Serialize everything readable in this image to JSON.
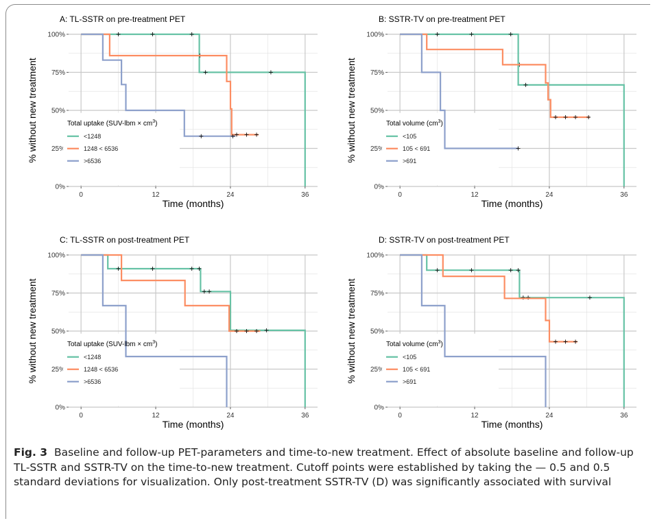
{
  "figure": {
    "caption_label": "Fig. 3",
    "caption_text": "Baseline and follow-up PET-parameters and time-to-new treatment. Effect of absolute baseline and follow-up TL-SSTR and SSTR-TV on the time-to-new treatment. Cutoff points were established by taking the — 0.5 and 0.5 standard deviations for visualization. Only post-treatment SSTR-TV (D) was significantly associated with survival"
  },
  "colors": {
    "green": "#66c2a5",
    "orange": "#fc8d62",
    "blue": "#8da0cb",
    "grid": "#c8c8c8"
  },
  "chart_data": [
    {
      "type": "line",
      "title": "A: TL-SSTR on pre-treatment PET",
      "xlabel": "Time (months)",
      "ylabel": "% without new treatment",
      "xlim": [
        -2,
        38
      ],
      "ylim": [
        0,
        100
      ],
      "xticks": [
        0,
        12,
        24,
        36
      ],
      "xtick_labels": [
        "0",
        "12",
        "24",
        "36"
      ],
      "yticks": [
        0,
        25,
        50,
        75,
        100
      ],
      "ytick_labels": [
        "0%",
        "25%",
        "50%",
        "75%",
        "100%"
      ],
      "legend_title": "Total uptake (SUV-lbm × cm",
      "legend_title_sup": "3",
      "legend_title_end": ")",
      "series": [
        {
          "name": "<1248",
          "color": "#66c2a5",
          "steps": [
            [
              0,
              100
            ],
            [
              19,
              100
            ],
            [
              19,
              75
            ],
            [
              36,
              75
            ],
            [
              36,
              0
            ]
          ],
          "censor": [
            [
              6,
              100
            ],
            [
              11.5,
              100
            ],
            [
              17.8,
              100
            ],
            [
              19.1,
              86
            ],
            [
              20,
              75
            ],
            [
              30.5,
              75
            ]
          ]
        },
        {
          "name": "1248 < 6536",
          "color": "#fc8d62",
          "steps": [
            [
              0,
              100
            ],
            [
              4.6,
              100
            ],
            [
              4.6,
              86
            ],
            [
              23.4,
              86
            ],
            [
              23.4,
              69
            ],
            [
              24,
              69
            ],
            [
              24,
              51
            ],
            [
              24.2,
              51
            ],
            [
              24.2,
              34
            ],
            [
              28.5,
              34
            ]
          ],
          "censor": [
            [
              25,
              34
            ],
            [
              26.6,
              34
            ],
            [
              28.2,
              34
            ]
          ]
        },
        {
          "name": ">6536",
          "color": "#8da0cb",
          "steps": [
            [
              0,
              100
            ],
            [
              3.5,
              100
            ],
            [
              3.5,
              83
            ],
            [
              6.5,
              83
            ],
            [
              6.5,
              67
            ],
            [
              7.2,
              67
            ],
            [
              7.2,
              50
            ],
            [
              16.6,
              50
            ],
            [
              16.6,
              33
            ],
            [
              24.8,
              33
            ]
          ],
          "censor": [
            [
              19.3,
              33
            ],
            [
              24.4,
              33
            ]
          ]
        }
      ]
    },
    {
      "type": "line",
      "title": "B: SSTR-TV on pre-treatment PET",
      "xlabel": "Time (months)",
      "ylabel": "% without new treatment",
      "xlim": [
        -2,
        38
      ],
      "ylim": [
        0,
        100
      ],
      "xticks": [
        0,
        12,
        24,
        36
      ],
      "xtick_labels": [
        "0",
        "12",
        "24",
        "36"
      ],
      "yticks": [
        0,
        25,
        50,
        75,
        100
      ],
      "ytick_labels": [
        "0%",
        "25%",
        "50%",
        "75%",
        "100%"
      ],
      "legend_title": "Total volume (cm",
      "legend_title_sup": "3",
      "legend_title_end": ")",
      "series": [
        {
          "name": "<105",
          "color": "#66c2a5",
          "steps": [
            [
              0,
              100
            ],
            [
              19,
              100
            ],
            [
              19,
              66.7
            ],
            [
              36,
              66.7
            ],
            [
              36,
              0
            ]
          ],
          "censor": [
            [
              6,
              100
            ],
            [
              11.5,
              100
            ],
            [
              17.8,
              100
            ],
            [
              19.2,
              80
            ],
            [
              20.2,
              66.7
            ]
          ]
        },
        {
          "name": "105 < 691",
          "color": "#fc8d62",
          "steps": [
            [
              0,
              100
            ],
            [
              4.3,
              100
            ],
            [
              4.3,
              90
            ],
            [
              16.5,
              90
            ],
            [
              16.5,
              80
            ],
            [
              23.4,
              80
            ],
            [
              23.4,
              68
            ],
            [
              23.8,
              68
            ],
            [
              23.8,
              57
            ],
            [
              24.2,
              57
            ],
            [
              24.2,
              45.5
            ],
            [
              30.5,
              45.5
            ]
          ],
          "censor": [
            [
              25,
              45.5
            ],
            [
              26.6,
              45.5
            ],
            [
              28.2,
              45.5
            ],
            [
              30.3,
              45.5
            ]
          ]
        },
        {
          "name": ">691",
          "color": "#8da0cb",
          "steps": [
            [
              0,
              100
            ],
            [
              3.5,
              100
            ],
            [
              3.5,
              75
            ],
            [
              6.5,
              75
            ],
            [
              6.5,
              50
            ],
            [
              7.2,
              50
            ],
            [
              7.2,
              25
            ],
            [
              19,
              25
            ]
          ],
          "censor": [
            [
              19,
              25
            ]
          ]
        }
      ]
    },
    {
      "type": "line",
      "title": "C: TL-SSTR on post-treatment PET",
      "xlabel": "Time (months)",
      "ylabel": "% without new treatment",
      "xlim": [
        -2,
        38
      ],
      "ylim": [
        0,
        100
      ],
      "xticks": [
        0,
        12,
        24,
        36
      ],
      "xtick_labels": [
        "0",
        "12",
        "24",
        "36"
      ],
      "yticks": [
        0,
        25,
        50,
        75,
        100
      ],
      "ytick_labels": [
        "0%",
        "25%",
        "50%",
        "75%",
        "100%"
      ],
      "legend_title": "Total uptake (SUV-lbm × cm",
      "legend_title_sup": "3",
      "legend_title_end": ")",
      "series": [
        {
          "name": "<1248",
          "color": "#66c2a5",
          "steps": [
            [
              0,
              100
            ],
            [
              4.3,
              100
            ],
            [
              4.3,
              91
            ],
            [
              19.2,
              91
            ],
            [
              19.2,
              76
            ],
            [
              24,
              76
            ],
            [
              24,
              50.5
            ],
            [
              36,
              50.5
            ],
            [
              36,
              0
            ]
          ],
          "censor": [
            [
              6,
              91
            ],
            [
              11.5,
              91
            ],
            [
              17.8,
              91
            ],
            [
              19,
              91
            ],
            [
              19.8,
              76
            ],
            [
              20.6,
              76
            ],
            [
              29.8,
              50.5
            ]
          ]
        },
        {
          "name": "1248 < 6536",
          "color": "#fc8d62",
          "steps": [
            [
              0,
              100
            ],
            [
              6.5,
              100
            ],
            [
              6.5,
              83.3
            ],
            [
              16.7,
              83.3
            ],
            [
              16.7,
              66.7
            ],
            [
              23.8,
              66.7
            ],
            [
              23.8,
              50
            ],
            [
              28.8,
              50
            ]
          ],
          "censor": [
            [
              25,
              50
            ],
            [
              26.6,
              50
            ],
            [
              28.2,
              50
            ]
          ]
        },
        {
          "name": ">6536",
          "color": "#8da0cb",
          "steps": [
            [
              0,
              100
            ],
            [
              3.5,
              100
            ],
            [
              3.5,
              66.7
            ],
            [
              7.2,
              66.7
            ],
            [
              7.2,
              33.3
            ],
            [
              23.4,
              33.3
            ],
            [
              23.4,
              0
            ]
          ],
          "censor": []
        }
      ]
    },
    {
      "type": "line",
      "title": "D: SSTR-TV on post-treatment PET",
      "xlabel": "Time (months)",
      "ylabel": "% without new treatment",
      "xlim": [
        -2,
        38
      ],
      "ylim": [
        0,
        100
      ],
      "xticks": [
        0,
        12,
        24,
        36
      ],
      "xtick_labels": [
        "0",
        "12",
        "24",
        "36"
      ],
      "yticks": [
        0,
        25,
        50,
        75,
        100
      ],
      "ytick_labels": [
        "0%",
        "25%",
        "50%",
        "75%",
        "100%"
      ],
      "legend_title": "Total volume (cm",
      "legend_title_sup": "3",
      "legend_title_end": ")",
      "series": [
        {
          "name": "<105",
          "color": "#66c2a5",
          "steps": [
            [
              0,
              100
            ],
            [
              4.3,
              100
            ],
            [
              4.3,
              90
            ],
            [
              19.2,
              90
            ],
            [
              19.2,
              72
            ],
            [
              36,
              72
            ],
            [
              36,
              0
            ]
          ],
          "censor": [
            [
              6,
              90
            ],
            [
              11.5,
              90
            ],
            [
              17.8,
              90
            ],
            [
              19,
              90
            ],
            [
              19.8,
              72
            ],
            [
              20.6,
              72
            ],
            [
              30.5,
              72
            ]
          ]
        },
        {
          "name": "105 < 691",
          "color": "#fc8d62",
          "steps": [
            [
              0,
              100
            ],
            [
              6.9,
              100
            ],
            [
              6.9,
              86
            ],
            [
              16.8,
              86
            ],
            [
              16.8,
              71.5
            ],
            [
              23.4,
              71.5
            ],
            [
              23.4,
              57
            ],
            [
              24,
              57
            ],
            [
              24,
              43
            ],
            [
              28.5,
              43
            ]
          ],
          "censor": [
            [
              25,
              43
            ],
            [
              26.6,
              43
            ],
            [
              28.2,
              43
            ]
          ]
        },
        {
          "name": ">691",
          "color": "#8da0cb",
          "steps": [
            [
              0,
              100
            ],
            [
              3.5,
              100
            ],
            [
              3.5,
              66.7
            ],
            [
              7.2,
              66.7
            ],
            [
              7.2,
              33.3
            ],
            [
              23.4,
              33.3
            ],
            [
              23.4,
              0
            ]
          ],
          "censor": []
        }
      ]
    }
  ]
}
